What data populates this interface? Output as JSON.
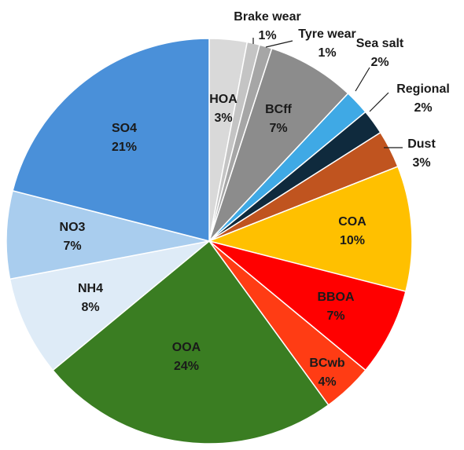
{
  "chart_data": {
    "type": "pie",
    "start_angle_deg": 0,
    "direction": "clockwise",
    "slices": [
      {
        "name": "HOA",
        "value": 3,
        "pct_label": "3%",
        "color": "#d9d9d9"
      },
      {
        "name": "Brake wear",
        "value": 1,
        "pct_label": "1%",
        "color": "#c4c4c4"
      },
      {
        "name": "Tyre wear",
        "value": 1,
        "pct_label": "1%",
        "color": "#a6a6a6"
      },
      {
        "name": "BCff",
        "value": 7,
        "pct_label": "7%",
        "color": "#8c8c8c"
      },
      {
        "name": "Sea salt",
        "value": 2,
        "pct_label": "2%",
        "color": "#3fa9e5"
      },
      {
        "name": "Regional",
        "value": 2,
        "pct_label": "2%",
        "color": "#0f2a3d"
      },
      {
        "name": "Dust",
        "value": 3,
        "pct_label": "3%",
        "color": "#c0541f"
      },
      {
        "name": "COA",
        "value": 10,
        "pct_label": "10%",
        "color": "#ffc000"
      },
      {
        "name": "BBOA",
        "value": 7,
        "pct_label": "7%",
        "color": "#ff0000"
      },
      {
        "name": "BCwb",
        "value": 4,
        "pct_label": "4%",
        "color": "#ff3c14"
      },
      {
        "name": "OOA",
        "value": 24,
        "pct_label": "24%",
        "color": "#3a7d22"
      },
      {
        "name": "NH4",
        "value": 8,
        "pct_label": "8%",
        "color": "#deebf7"
      },
      {
        "name": "NO3",
        "value": 7,
        "pct_label": "7%",
        "color": "#a9cdee"
      },
      {
        "name": "SO4",
        "value": 21,
        "pct_label": "21%",
        "color": "#4a90d9"
      }
    ]
  }
}
